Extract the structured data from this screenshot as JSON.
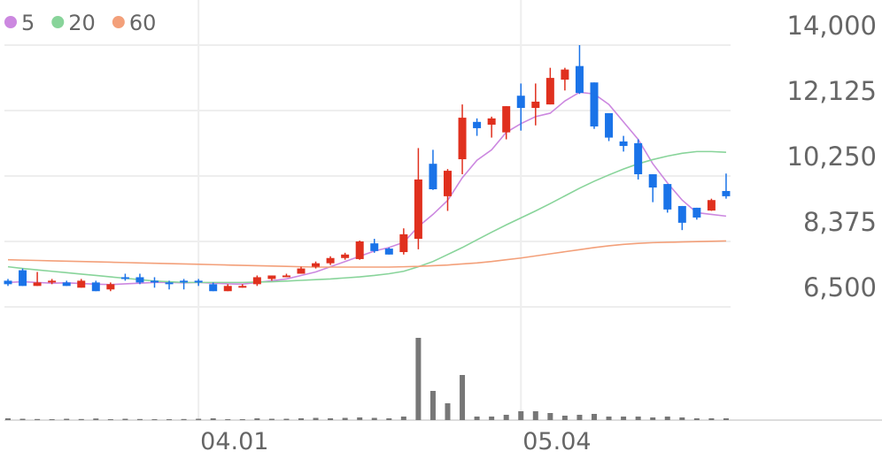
{
  "chart_data": {
    "type": "candlestick",
    "categories": [
      null,
      null,
      null,
      null,
      null,
      null,
      null,
      null,
      null,
      null,
      null,
      null,
      null,
      "04.01",
      null,
      null,
      null,
      null,
      null,
      null,
      null,
      null,
      null,
      null,
      null,
      null,
      null,
      null,
      null,
      null,
      null,
      null,
      null,
      null,
      null,
      "05.04",
      null,
      null,
      null,
      null,
      null,
      null,
      null,
      null,
      null,
      null,
      null,
      null,
      null,
      null
    ],
    "open": [
      7250,
      7550,
      7100,
      7200,
      7200,
      7050,
      7200,
      7000,
      7350,
      7350,
      7250,
      7200,
      7250,
      7250,
      7150,
      6950,
      7050,
      7150,
      7300,
      7350,
      7450,
      7650,
      7750,
      7900,
      7870,
      8320,
      8170,
      8070,
      8450,
      10600,
      9670,
      10730,
      11800,
      11720,
      11500,
      12550,
      12200,
      12300,
      13010,
      13400,
      12930,
      12050,
      11240,
      11190,
      10300,
      10020,
      9390,
      9340,
      9260,
      9820
    ],
    "high": [
      7300,
      7600,
      7500,
      7300,
      7250,
      7300,
      7250,
      7200,
      7450,
      7450,
      7350,
      7250,
      7300,
      7300,
      7200,
      7150,
      7150,
      7400,
      7400,
      7450,
      7650,
      7800,
      7950,
      8050,
      8400,
      8450,
      8200,
      8750,
      11050,
      11000,
      10450,
      12300,
      11900,
      11950,
      12250,
      12900,
      12900,
      13350,
      13350,
      14000,
      12930,
      12050,
      11400,
      11300,
      10300,
      10020,
      9390,
      9340,
      9600,
      10320
    ],
    "low": [
      7100,
      7100,
      7100,
      7150,
      7100,
      7050,
      6950,
      6950,
      7250,
      7150,
      7050,
      7000,
      7000,
      7100,
      6950,
      6950,
      7050,
      7100,
      7250,
      7350,
      7450,
      7600,
      7700,
      7850,
      7850,
      8050,
      8000,
      8000,
      8150,
      9850,
      9250,
      10300,
      11400,
      11350,
      11300,
      11550,
      11700,
      12300,
      12700,
      12600,
      11600,
      11250,
      10950,
      10150,
      9500,
      9200,
      8700,
      9000,
      9250,
      9600
    ],
    "close": [
      7150,
      7100,
      7200,
      7250,
      7100,
      7250,
      6950,
      7150,
      7300,
      7200,
      7200,
      7150,
      7200,
      7200,
      6950,
      7100,
      7100,
      7350,
      7400,
      7400,
      7600,
      7750,
      7900,
      8000,
      8375,
      8100,
      8000,
      8580,
      10150,
      9870,
      10400,
      11920,
      11620,
      11900,
      12250,
      12200,
      12380,
      13060,
      13300,
      12630,
      11670,
      11350,
      11110,
      10300,
      9920,
      9290,
      8910,
      9060,
      9560,
      9670
    ],
    "up_color": "#e0301e",
    "down_color": "#1a73e8",
    "moving_averages": [
      {
        "name": "5",
        "color": "#cc88e0",
        "values": [
          7200,
          7220,
          7200,
          7180,
          7190,
          7170,
          7150,
          7140,
          7160,
          7180,
          7200,
          7200,
          7190,
          7200,
          7180,
          7160,
          7150,
          7200,
          7250,
          7300,
          7400,
          7500,
          7650,
          7800,
          7950,
          8100,
          8200,
          8350,
          8800,
          9150,
          9550,
          10200,
          10700,
          11000,
          11500,
          11750,
          11950,
          12050,
          12400,
          12650,
          12600,
          12300,
          11800,
          11300,
          10600,
          10050,
          9560,
          9200,
          9150,
          9100
        ]
      },
      {
        "name": "20",
        "color": "#88d49a",
        "values": [
          7650,
          7600,
          7560,
          7520,
          7480,
          7440,
          7400,
          7360,
          7320,
          7280,
          7240,
          7220,
          7200,
          7200,
          7200,
          7200,
          7200,
          7210,
          7220,
          7240,
          7260,
          7280,
          7300,
          7330,
          7360,
          7400,
          7450,
          7520,
          7650,
          7800,
          8000,
          8200,
          8420,
          8640,
          8850,
          9050,
          9250,
          9460,
          9680,
          9900,
          10100,
          10280,
          10450,
          10600,
          10720,
          10820,
          10900,
          10950,
          10950,
          10930
        ]
      },
      {
        "name": "60",
        "color": "#f3a07a",
        "values": [
          7850,
          7840,
          7830,
          7820,
          7810,
          7800,
          7790,
          7780,
          7770,
          7760,
          7750,
          7740,
          7730,
          7720,
          7710,
          7700,
          7690,
          7680,
          7670,
          7660,
          7650,
          7640,
          7640,
          7640,
          7640,
          7640,
          7640,
          7650,
          7660,
          7680,
          7700,
          7730,
          7760,
          7800,
          7850,
          7900,
          7960,
          8020,
          8080,
          8140,
          8200,
          8250,
          8290,
          8320,
          8340,
          8350,
          8360,
          8370,
          8380,
          8390
        ]
      }
    ],
    "volume": {
      "color": "#777777",
      "values": [
        20000,
        15000,
        12000,
        10000,
        15000,
        12000,
        18000,
        10000,
        15000,
        12000,
        10000,
        10000,
        12000,
        15000,
        20000,
        10000,
        10000,
        20000,
        15000,
        15000,
        20000,
        25000,
        20000,
        25000,
        30000,
        25000,
        20000,
        40000,
        930000,
        330000,
        190000,
        510000,
        40000,
        40000,
        60000,
        100000,
        100000,
        80000,
        50000,
        60000,
        70000,
        40000,
        40000,
        40000,
        30000,
        40000,
        30000,
        20000,
        20000,
        20000
      ]
    },
    "ylim": [
      6500,
      14000
    ],
    "yticks": [
      {
        "value": 6500,
        "label": "6,500"
      },
      {
        "value": 8375,
        "label": "8,375"
      },
      {
        "value": 10250,
        "label": "10,250"
      },
      {
        "value": 12125,
        "label": "12,125"
      },
      {
        "value": 14000,
        "label": "14,000"
      }
    ],
    "grid": true
  }
}
